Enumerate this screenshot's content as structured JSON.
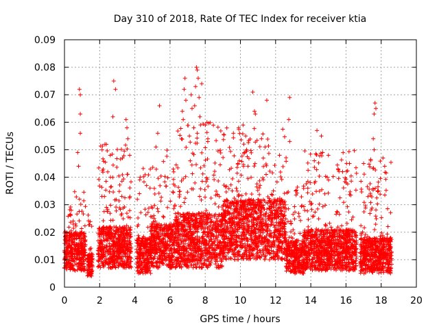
{
  "chart_data": {
    "type": "scatter",
    "title": "Day 310 of 2018, Rate Of TEC Index for receiver ktia",
    "xlabel": "GPS time / hours",
    "ylabel": "ROTI / TECUs",
    "xlim": [
      0,
      20
    ],
    "ylim": [
      0,
      0.09
    ],
    "xticks": [
      "0",
      "2",
      "4",
      "6",
      "8",
      "10",
      "12",
      "14",
      "16",
      "18",
      "20"
    ],
    "yticks": [
      "0",
      "0.01",
      "0.02",
      "0.03",
      "0.04",
      "0.05",
      "0.06",
      "0.07",
      "0.08",
      "0.09"
    ],
    "grid": true,
    "marker": "+",
    "color": "#ff0000",
    "segments": [
      {
        "start": 0.0,
        "end": 1.2,
        "base": 0.012,
        "spread": 0.014,
        "peak": 0.036
      },
      {
        "start": 1.3,
        "end": 1.6,
        "base": 0.01,
        "spread": 0.008,
        "peak": 0.031
      },
      {
        "start": 1.9,
        "end": 3.8,
        "base": 0.013,
        "spread": 0.015,
        "peak": 0.052
      },
      {
        "start": 4.1,
        "end": 4.9,
        "base": 0.011,
        "spread": 0.013,
        "peak": 0.045
      },
      {
        "start": 4.9,
        "end": 6.2,
        "base": 0.013,
        "spread": 0.016,
        "peak": 0.05
      },
      {
        "start": 6.2,
        "end": 9.0,
        "base": 0.013,
        "spread": 0.02,
        "peak": 0.06
      },
      {
        "start": 9.0,
        "end": 12.6,
        "base": 0.016,
        "spread": 0.022,
        "peak": 0.058
      },
      {
        "start": 12.6,
        "end": 13.6,
        "base": 0.011,
        "spread": 0.012,
        "peak": 0.038
      },
      {
        "start": 13.6,
        "end": 16.6,
        "base": 0.012,
        "spread": 0.015,
        "peak": 0.05
      },
      {
        "start": 16.8,
        "end": 18.6,
        "base": 0.011,
        "spread": 0.013,
        "peak": 0.047
      }
    ],
    "spikes": [
      {
        "x": 0.85,
        "y": 0.072
      },
      {
        "x": 0.9,
        "y": 0.07
      },
      {
        "x": 0.9,
        "y": 0.063
      },
      {
        "x": 0.9,
        "y": 0.056
      },
      {
        "x": 0.75,
        "y": 0.049
      },
      {
        "x": 0.8,
        "y": 0.044
      },
      {
        "x": 2.8,
        "y": 0.075
      },
      {
        "x": 2.9,
        "y": 0.072
      },
      {
        "x": 2.75,
        "y": 0.062
      },
      {
        "x": 2.3,
        "y": 0.052
      },
      {
        "x": 2.6,
        "y": 0.048
      },
      {
        "x": 3.5,
        "y": 0.061
      },
      {
        "x": 3.55,
        "y": 0.058
      },
      {
        "x": 3.6,
        "y": 0.054
      },
      {
        "x": 5.4,
        "y": 0.066
      },
      {
        "x": 5.3,
        "y": 0.056
      },
      {
        "x": 5.2,
        "y": 0.051
      },
      {
        "x": 6.85,
        "y": 0.076
      },
      {
        "x": 6.8,
        "y": 0.072
      },
      {
        "x": 6.9,
        "y": 0.068
      },
      {
        "x": 6.7,
        "y": 0.064
      },
      {
        "x": 6.75,
        "y": 0.061
      },
      {
        "x": 7.2,
        "y": 0.07
      },
      {
        "x": 7.25,
        "y": 0.065
      },
      {
        "x": 7.5,
        "y": 0.08
      },
      {
        "x": 7.55,
        "y": 0.079
      },
      {
        "x": 7.6,
        "y": 0.076
      },
      {
        "x": 7.45,
        "y": 0.073
      },
      {
        "x": 7.8,
        "y": 0.074
      },
      {
        "x": 7.65,
        "y": 0.069
      },
      {
        "x": 7.4,
        "y": 0.066
      },
      {
        "x": 7.7,
        "y": 0.062
      },
      {
        "x": 7.35,
        "y": 0.058
      },
      {
        "x": 7.55,
        "y": 0.056
      },
      {
        "x": 7.1,
        "y": 0.055
      },
      {
        "x": 8.1,
        "y": 0.06
      },
      {
        "x": 8.15,
        "y": 0.054
      },
      {
        "x": 9.9,
        "y": 0.058
      },
      {
        "x": 9.6,
        "y": 0.056
      },
      {
        "x": 10.15,
        "y": 0.059
      },
      {
        "x": 10.3,
        "y": 0.055
      },
      {
        "x": 10.7,
        "y": 0.071
      },
      {
        "x": 10.8,
        "y": 0.064
      },
      {
        "x": 10.85,
        "y": 0.063
      },
      {
        "x": 11.5,
        "y": 0.068
      },
      {
        "x": 11.2,
        "y": 0.054
      },
      {
        "x": 11.4,
        "y": 0.051
      },
      {
        "x": 12.8,
        "y": 0.069
      },
      {
        "x": 12.75,
        "y": 0.061
      },
      {
        "x": 12.8,
        "y": 0.053
      },
      {
        "x": 14.35,
        "y": 0.057
      },
      {
        "x": 14.6,
        "y": 0.055
      },
      {
        "x": 14.2,
        "y": 0.046
      },
      {
        "x": 15.0,
        "y": 0.048
      },
      {
        "x": 16.2,
        "y": 0.045
      },
      {
        "x": 17.65,
        "y": 0.067
      },
      {
        "x": 17.7,
        "y": 0.065
      },
      {
        "x": 17.6,
        "y": 0.063
      },
      {
        "x": 17.55,
        "y": 0.054
      },
      {
        "x": 17.6,
        "y": 0.05
      },
      {
        "x": 17.0,
        "y": 0.045
      },
      {
        "x": 18.1,
        "y": 0.047
      },
      {
        "x": 18.2,
        "y": 0.044
      }
    ]
  }
}
